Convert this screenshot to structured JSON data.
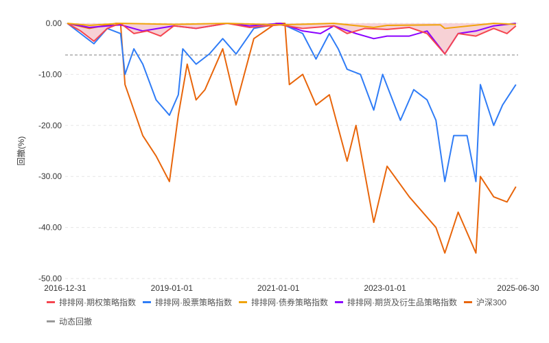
{
  "chart_data": {
    "type": "line",
    "title": "",
    "xlabel": "",
    "ylabel": "回撤(%)",
    "ylim": [
      -50,
      0
    ],
    "xlim": [
      "2016-12-31",
      "2025-06-30"
    ],
    "grid": true,
    "legend_placement": "bottom",
    "y_ticks": [
      "0.00",
      "-10.00",
      "-20.00",
      "-30.00",
      "-40.00",
      "-50.00"
    ],
    "y_tick_values": [
      0,
      -10,
      -20,
      -30,
      -40,
      -50
    ],
    "x_ticks": [
      "2016-12-31",
      "2019-01-01",
      "2021-01-01",
      "2023-01-01",
      "2025-06-30"
    ],
    "dynamic_drawdown": {
      "name": "动态回撤",
      "value": -6.2,
      "color": "#999999"
    },
    "series": [
      {
        "name": "排排网·期权策略指数",
        "color": "#f5454f",
        "fill": "#f5c6ca",
        "points": [
          [
            "2017-01",
            0
          ],
          [
            "2017-04",
            -1.5
          ],
          [
            "2017-07",
            -3.5
          ],
          [
            "2017-10",
            -1
          ],
          [
            "2018-01",
            0
          ],
          [
            "2018-04",
            -2
          ],
          [
            "2018-07",
            -1.5
          ],
          [
            "2018-10",
            -2.5
          ],
          [
            "2019-01",
            -0.5
          ],
          [
            "2019-06",
            -1
          ],
          [
            "2020-01",
            0
          ],
          [
            "2020-06",
            -0.8
          ],
          [
            "2021-01",
            -0.3
          ],
          [
            "2021-06",
            -1
          ],
          [
            "2022-01",
            -0.5
          ],
          [
            "2022-04",
            -2
          ],
          [
            "2022-08",
            -1
          ],
          [
            "2023-01",
            -1.2
          ],
          [
            "2023-06",
            -0.8
          ],
          [
            "2023-10",
            -2
          ],
          [
            "2024-02",
            -6
          ],
          [
            "2024-05",
            -2
          ],
          [
            "2024-09",
            -2.5
          ],
          [
            "2025-01",
            -1
          ],
          [
            "2025-04",
            -2
          ],
          [
            "2025-06",
            -0.5
          ]
        ]
      },
      {
        "name": "排排网·股票策略指数",
        "color": "#2f7cf6",
        "points": [
          [
            "2017-01",
            0
          ],
          [
            "2017-04",
            -2
          ],
          [
            "2017-07",
            -4
          ],
          [
            "2017-10",
            -1
          ],
          [
            "2018-01",
            -2
          ],
          [
            "2018-02",
            -10
          ],
          [
            "2018-04",
            -5
          ],
          [
            "2018-06",
            -8
          ],
          [
            "2018-09",
            -15
          ],
          [
            "2018-12",
            -18
          ],
          [
            "2019-02",
            -14
          ],
          [
            "2019-03",
            -5
          ],
          [
            "2019-06",
            -8
          ],
          [
            "2019-09",
            -6
          ],
          [
            "2019-12",
            -3
          ],
          [
            "2020-03",
            -6
          ],
          [
            "2020-07",
            -1
          ],
          [
            "2021-01",
            0
          ],
          [
            "2021-06",
            -2
          ],
          [
            "2021-09",
            -7
          ],
          [
            "2021-12",
            -2
          ],
          [
            "2022-02",
            -5
          ],
          [
            "2022-04",
            -9
          ],
          [
            "2022-07",
            -10
          ],
          [
            "2022-10",
            -17
          ],
          [
            "2022-12",
            -10
          ],
          [
            "2023-04",
            -19
          ],
          [
            "2023-07",
            -13
          ],
          [
            "2023-10",
            -15
          ],
          [
            "2023-12",
            -19
          ],
          [
            "2024-02",
            -31
          ],
          [
            "2024-04",
            -22
          ],
          [
            "2024-07",
            -22
          ],
          [
            "2024-09",
            -31
          ],
          [
            "2024-10",
            -12
          ],
          [
            "2025-01",
            -20
          ],
          [
            "2025-03",
            -16
          ],
          [
            "2025-06",
            -12
          ]
        ]
      },
      {
        "name": "排排网·债券策略指数",
        "color": "#f0a30a",
        "points": [
          [
            "2017-01",
            0
          ],
          [
            "2017-06",
            -0.4
          ],
          [
            "2018-01",
            0
          ],
          [
            "2019-01",
            -0.2
          ],
          [
            "2020-01",
            0
          ],
          [
            "2021-01",
            -0.3
          ],
          [
            "2022-01",
            0
          ],
          [
            "2022-10",
            -0.8
          ],
          [
            "2023-01",
            -0.4
          ],
          [
            "2024-01",
            -0.3
          ],
          [
            "2024-02",
            -1
          ],
          [
            "2025-01",
            0
          ],
          [
            "2025-06",
            -0.2
          ]
        ]
      },
      {
        "name": "排排网·期货及衍生品策略指数",
        "color": "#8a00ff",
        "points": [
          [
            "2017-01",
            0
          ],
          [
            "2017-06",
            -0.8
          ],
          [
            "2018-01",
            -0.3
          ],
          [
            "2018-06",
            -1.5
          ],
          [
            "2019-01",
            -0.5
          ],
          [
            "2019-06",
            -1
          ],
          [
            "2020-01",
            0
          ],
          [
            "2020-06",
            -0.5
          ],
          [
            "2021-01",
            0
          ],
          [
            "2021-06",
            -1.5
          ],
          [
            "2021-10",
            -2
          ],
          [
            "2022-01",
            -0.5
          ],
          [
            "2022-06",
            -2
          ],
          [
            "2022-10",
            -3
          ],
          [
            "2023-01",
            -2.5
          ],
          [
            "2023-06",
            -2.5
          ],
          [
            "2023-10",
            -1.5
          ],
          [
            "2024-02",
            -6
          ],
          [
            "2024-05",
            -2
          ],
          [
            "2024-09",
            -1.5
          ],
          [
            "2025-01",
            -0.5
          ],
          [
            "2025-06",
            0
          ]
        ]
      },
      {
        "name": "沪深300",
        "color": "#e8650a",
        "points": [
          [
            "2017-01",
            0
          ],
          [
            "2017-06",
            -1
          ],
          [
            "2017-12",
            0
          ],
          [
            "2018-01",
            0
          ],
          [
            "2018-02",
            -12
          ],
          [
            "2018-06",
            -22
          ],
          [
            "2018-09",
            -26
          ],
          [
            "2018-12",
            -31
          ],
          [
            "2019-02",
            -18
          ],
          [
            "2019-04",
            -8
          ],
          [
            "2019-06",
            -15
          ],
          [
            "2019-08",
            -13
          ],
          [
            "2019-12",
            -5
          ],
          [
            "2020-03",
            -16
          ],
          [
            "2020-07",
            -3
          ],
          [
            "2020-12",
            0
          ],
          [
            "2021-02",
            0
          ],
          [
            "2021-03",
            -12
          ],
          [
            "2021-06",
            -10
          ],
          [
            "2021-09",
            -16
          ],
          [
            "2021-12",
            -14
          ],
          [
            "2022-04",
            -27
          ],
          [
            "2022-06",
            -20
          ],
          [
            "2022-10",
            -39
          ],
          [
            "2023-01",
            -28
          ],
          [
            "2023-06",
            -34
          ],
          [
            "2023-12",
            -40
          ],
          [
            "2024-02",
            -45
          ],
          [
            "2024-05",
            -37
          ],
          [
            "2024-09",
            -45
          ],
          [
            "2024-10",
            -30
          ],
          [
            "2025-01",
            -34
          ],
          [
            "2025-04",
            -35
          ],
          [
            "2025-06",
            -32
          ]
        ]
      }
    ]
  }
}
